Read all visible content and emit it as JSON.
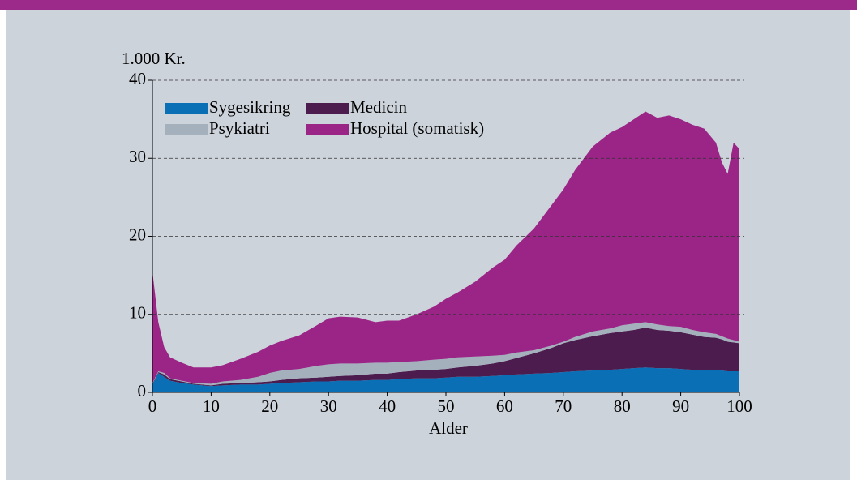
{
  "chart_data": {
    "type": "stacked_area",
    "y_axis_label": "1.000 Kr.",
    "x_axis_label": "Alder",
    "x": [
      0,
      1,
      2,
      3,
      5,
      7,
      10,
      12,
      15,
      18,
      20,
      22,
      25,
      28,
      30,
      32,
      35,
      38,
      40,
      42,
      45,
      48,
      50,
      52,
      55,
      58,
      60,
      62,
      65,
      68,
      70,
      72,
      75,
      78,
      80,
      82,
      84,
      86,
      88,
      90,
      92,
      94,
      96,
      97,
      98,
      99,
      100
    ],
    "series": [
      {
        "name": "Sygesikring",
        "color": "#0b6fb6",
        "values": [
          1.0,
          2.5,
          2.0,
          1.5,
          1.2,
          1.0,
          0.8,
          0.9,
          1.0,
          1.0,
          1.1,
          1.2,
          1.3,
          1.4,
          1.4,
          1.5,
          1.5,
          1.6,
          1.6,
          1.7,
          1.8,
          1.8,
          1.9,
          2.0,
          2.0,
          2.1,
          2.2,
          2.3,
          2.4,
          2.5,
          2.6,
          2.7,
          2.8,
          2.9,
          3.0,
          3.1,
          3.2,
          3.1,
          3.1,
          3.0,
          2.9,
          2.8,
          2.8,
          2.8,
          2.7,
          2.7,
          2.7
        ]
      },
      {
        "name": "Medicin",
        "color": "#4b1c4d",
        "values": [
          0.1,
          0.1,
          0.3,
          0.2,
          0.2,
          0.1,
          0.1,
          0.2,
          0.2,
          0.3,
          0.3,
          0.4,
          0.5,
          0.5,
          0.6,
          0.6,
          0.7,
          0.8,
          0.8,
          0.9,
          1.0,
          1.1,
          1.1,
          1.2,
          1.4,
          1.6,
          1.8,
          2.1,
          2.6,
          3.2,
          3.7,
          4.0,
          4.4,
          4.7,
          4.8,
          4.9,
          5.1,
          4.9,
          4.8,
          4.7,
          4.5,
          4.3,
          4.2,
          4.0,
          3.8,
          3.7,
          3.6
        ]
      },
      {
        "name": "Psykiatri",
        "color": "#a5b0bd",
        "values": [
          0.1,
          0.1,
          0.2,
          0.1,
          0.1,
          0.1,
          0.2,
          0.3,
          0.4,
          0.7,
          1.1,
          1.2,
          1.2,
          1.5,
          1.6,
          1.6,
          1.5,
          1.4,
          1.4,
          1.3,
          1.2,
          1.3,
          1.3,
          1.3,
          1.2,
          1.0,
          0.8,
          0.7,
          0.4,
          0.3,
          0.2,
          0.4,
          0.6,
          0.6,
          0.8,
          0.8,
          0.7,
          0.7,
          0.6,
          0.7,
          0.6,
          0.6,
          0.5,
          0.4,
          0.4,
          0.3,
          0.2
        ]
      },
      {
        "name": "Hospital (somatisk)",
        "color": "#9a2586",
        "values": [
          14.3,
          6.3,
          3.3,
          2.7,
          2.3,
          2.0,
          2.1,
          2.1,
          2.7,
          3.2,
          3.5,
          3.8,
          4.3,
          5.2,
          5.9,
          6.0,
          5.9,
          5.2,
          5.4,
          5.3,
          6.0,
          6.8,
          7.7,
          8.3,
          9.6,
          11.3,
          12.2,
          13.7,
          15.6,
          18.0,
          19.5,
          21.4,
          23.7,
          25.1,
          25.4,
          26.2,
          27.0,
          26.5,
          27.0,
          26.6,
          26.3,
          26.1,
          24.5,
          22.3,
          21.1,
          25.3,
          24.7
        ]
      }
    ],
    "legend_order": [
      0,
      1,
      2,
      3
    ],
    "xlim": [
      0,
      100
    ],
    "xticks": [
      0,
      10,
      20,
      30,
      40,
      50,
      60,
      70,
      80,
      90,
      100
    ],
    "ylim": [
      0,
      40
    ],
    "yticks": [
      0,
      10,
      20,
      30,
      40
    ],
    "grid": true
  }
}
